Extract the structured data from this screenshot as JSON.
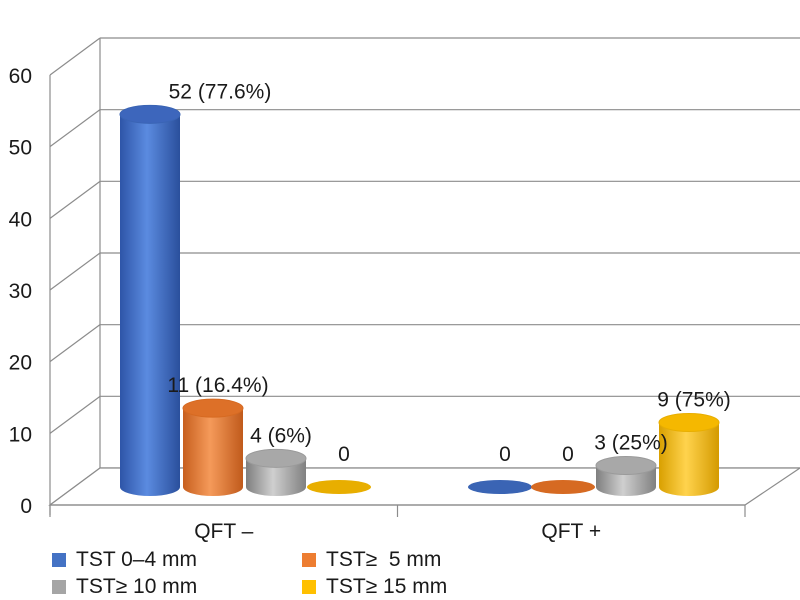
{
  "chart_data": {
    "type": "bar",
    "style": "3d-cylinder",
    "categories": [
      "QFT –",
      "QFT +"
    ],
    "series": [
      {
        "name": "TST 0–4 mm",
        "color": "#4472C4",
        "values": [
          52,
          0
        ],
        "labels": [
          "52 (77.6%)",
          "0"
        ]
      },
      {
        "name": "TST≥  5 mm",
        "color": "#ED7D31",
        "values": [
          11,
          0
        ],
        "labels": [
          "11 (16.4%)",
          "0"
        ]
      },
      {
        "name": "TST≥ 10 mm",
        "color": "#A5A5A5",
        "values": [
          4,
          3
        ],
        "labels": [
          "4 (6%)",
          "3 (25%)"
        ]
      },
      {
        "name": "TST≥ 15 mm",
        "color": "#FFC000",
        "values": [
          0,
          9
        ],
        "labels": [
          "0",
          "9 (75%)"
        ]
      }
    ],
    "yticks": [
      "0",
      "10",
      "20",
      "30",
      "40",
      "50",
      "60"
    ],
    "ylim": [
      0,
      60
    ],
    "grid": true,
    "legend_position": "bottom-left",
    "title": "",
    "xlabel": "",
    "ylabel": ""
  }
}
